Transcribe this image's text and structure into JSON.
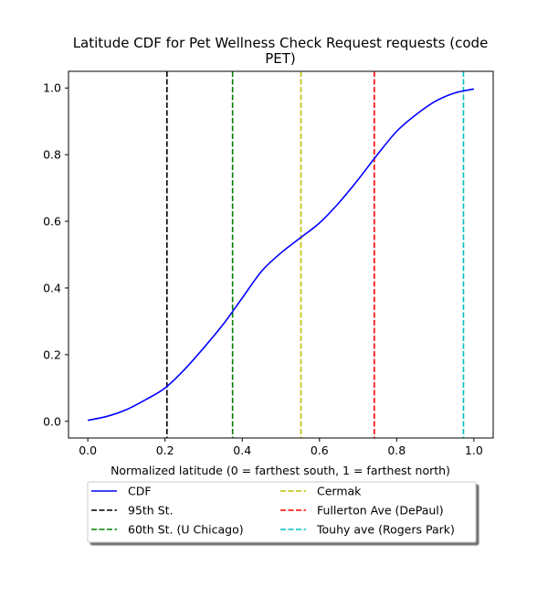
{
  "chart_data": {
    "type": "line",
    "title_line1": "Latitude CDF for Pet Wellness Check Request  requests (code",
    "title_line2": "PET)",
    "xlabel": "Normalized latitude (0 = farthest south, 1 = farthest north)",
    "ylabel": "",
    "xlim": [
      -0.05,
      1.05
    ],
    "ylim": [
      -0.05,
      1.05
    ],
    "xticks": [
      0.0,
      0.2,
      0.4,
      0.6,
      0.8,
      1.0
    ],
    "xtick_labels": [
      "0.0",
      "0.2",
      "0.4",
      "0.6",
      "0.8",
      "1.0"
    ],
    "yticks": [
      0.0,
      0.2,
      0.4,
      0.6,
      0.8,
      1.0
    ],
    "ytick_labels": [
      "0.0",
      "0.2",
      "0.4",
      "0.6",
      "0.8",
      "1.0"
    ],
    "grid": false,
    "legend_placement": "below plot, two columns",
    "series": [
      {
        "name": "CDF",
        "color": "#0000ff",
        "linestyle": "solid",
        "x": [
          0.0,
          0.05,
          0.1,
          0.15,
          0.2,
          0.25,
          0.3,
          0.35,
          0.4,
          0.45,
          0.5,
          0.55,
          0.6,
          0.65,
          0.7,
          0.75,
          0.8,
          0.85,
          0.9,
          0.95,
          1.0
        ],
        "y": [
          0.003,
          0.015,
          0.035,
          0.065,
          0.1,
          0.155,
          0.22,
          0.29,
          0.37,
          0.45,
          0.505,
          0.55,
          0.595,
          0.655,
          0.725,
          0.8,
          0.87,
          0.92,
          0.96,
          0.985,
          0.997
        ]
      }
    ],
    "reference_lines": [
      {
        "name": "95th St.",
        "x": 0.205,
        "color": "#000000"
      },
      {
        "name": "60th St. (U Chicago)",
        "x": 0.375,
        "color": "#008000"
      },
      {
        "name": "Cermak",
        "x": 0.552,
        "color": "#bfbf00"
      },
      {
        "name": "Fullerton Ave (DePaul)",
        "x": 0.742,
        "color": "#ff0000"
      },
      {
        "name": "Touhy ave (Rogers Park)",
        "x": 0.973,
        "color": "#00bfbf"
      }
    ],
    "legend": [
      {
        "label": "CDF",
        "color": "#0000ff",
        "style": "solid"
      },
      {
        "label": "Cermak",
        "color": "#bfbf00",
        "style": "dashed"
      },
      {
        "label": "95th St.",
        "color": "#000000",
        "style": "dashed"
      },
      {
        "label": "Fullerton Ave (DePaul)",
        "color": "#ff0000",
        "style": "dashed"
      },
      {
        "label": "60th St. (U Chicago)",
        "color": "#008000",
        "style": "dashed"
      },
      {
        "label": "Touhy ave (Rogers Park)",
        "color": "#00bfbf",
        "style": "dashed"
      }
    ]
  }
}
